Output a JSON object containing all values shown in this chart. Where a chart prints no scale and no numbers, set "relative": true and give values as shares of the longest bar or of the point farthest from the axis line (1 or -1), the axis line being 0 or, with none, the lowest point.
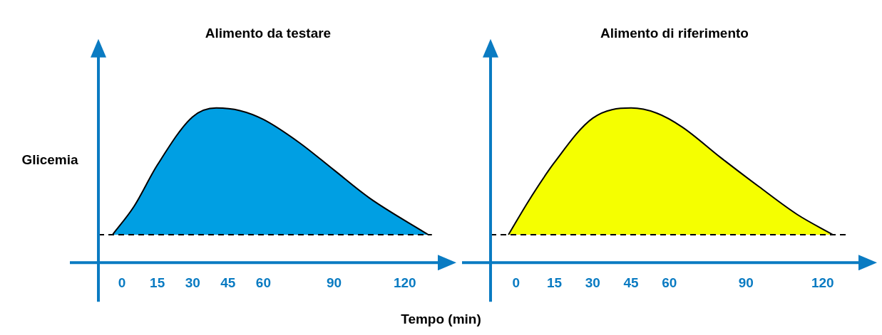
{
  "chart_data": [
    {
      "type": "area",
      "title": "Alimento da testare",
      "ylabel": "Glicemia",
      "xlabel": "Tempo (min)",
      "relative": true,
      "xlim": [
        -10,
        134
      ],
      "xticks": [
        0,
        15,
        30,
        45,
        60,
        90,
        120
      ],
      "grid": false,
      "legend": false,
      "series": [
        {
          "color": "#009fe3",
          "x": [
            -4,
            5,
            15,
            30,
            40,
            50,
            60,
            75,
            90,
            105,
            130
          ],
          "values": [
            0,
            0.22,
            0.55,
            0.93,
            1,
            0.98,
            0.91,
            0.73,
            0.51,
            0.29,
            0
          ]
        }
      ],
      "ref_lines": [
        {
          "axis": "y",
          "value": 0,
          "color": "#000000",
          "line_style": "dashed"
        }
      ]
    },
    {
      "type": "area",
      "title": "Alimento di riferimento",
      "relative": true,
      "xlim": [
        -10,
        134
      ],
      "xticks": [
        0,
        15,
        30,
        45,
        60,
        90,
        120
      ],
      "grid": false,
      "legend": false,
      "series": [
        {
          "color": "#f5ff00",
          "x": [
            -3,
            5,
            15,
            30,
            45,
            55,
            65,
            80,
            95,
            110,
            124
          ],
          "values": [
            0,
            0.27,
            0.57,
            0.92,
            1,
            0.96,
            0.85,
            0.61,
            0.38,
            0.16,
            0
          ]
        }
      ],
      "ref_lines": [
        {
          "axis": "y",
          "value": 0,
          "color": "#000000",
          "line_style": "dashed"
        }
      ]
    }
  ]
}
